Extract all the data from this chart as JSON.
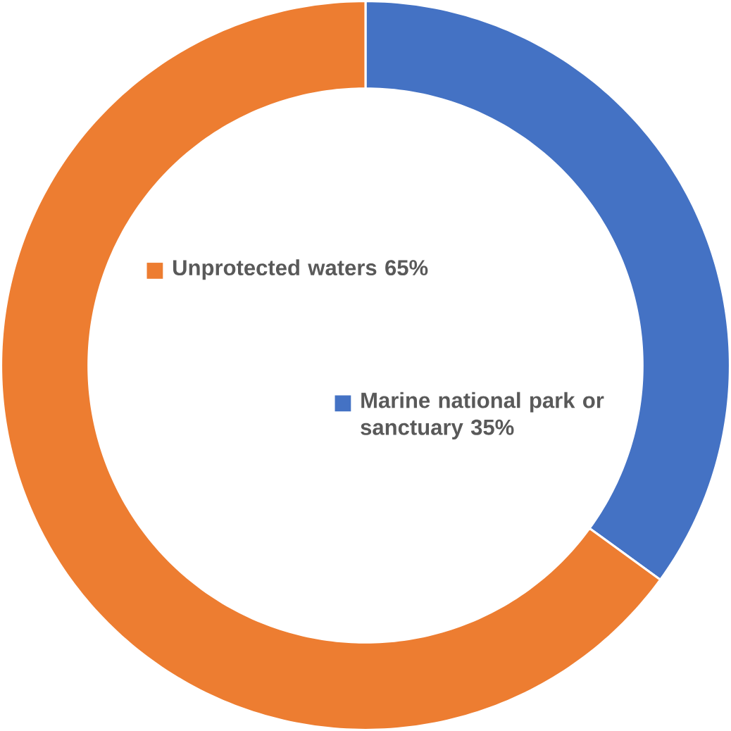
{
  "chart_data": {
    "type": "donut",
    "categories": [
      "Marine national park or sanctuary",
      "Unprotected waters"
    ],
    "values": [
      35,
      65
    ],
    "value_labels": [
      "35%",
      "65%"
    ],
    "colors": [
      "#4472c4",
      "#ed7d31"
    ],
    "legend": "center"
  }
}
